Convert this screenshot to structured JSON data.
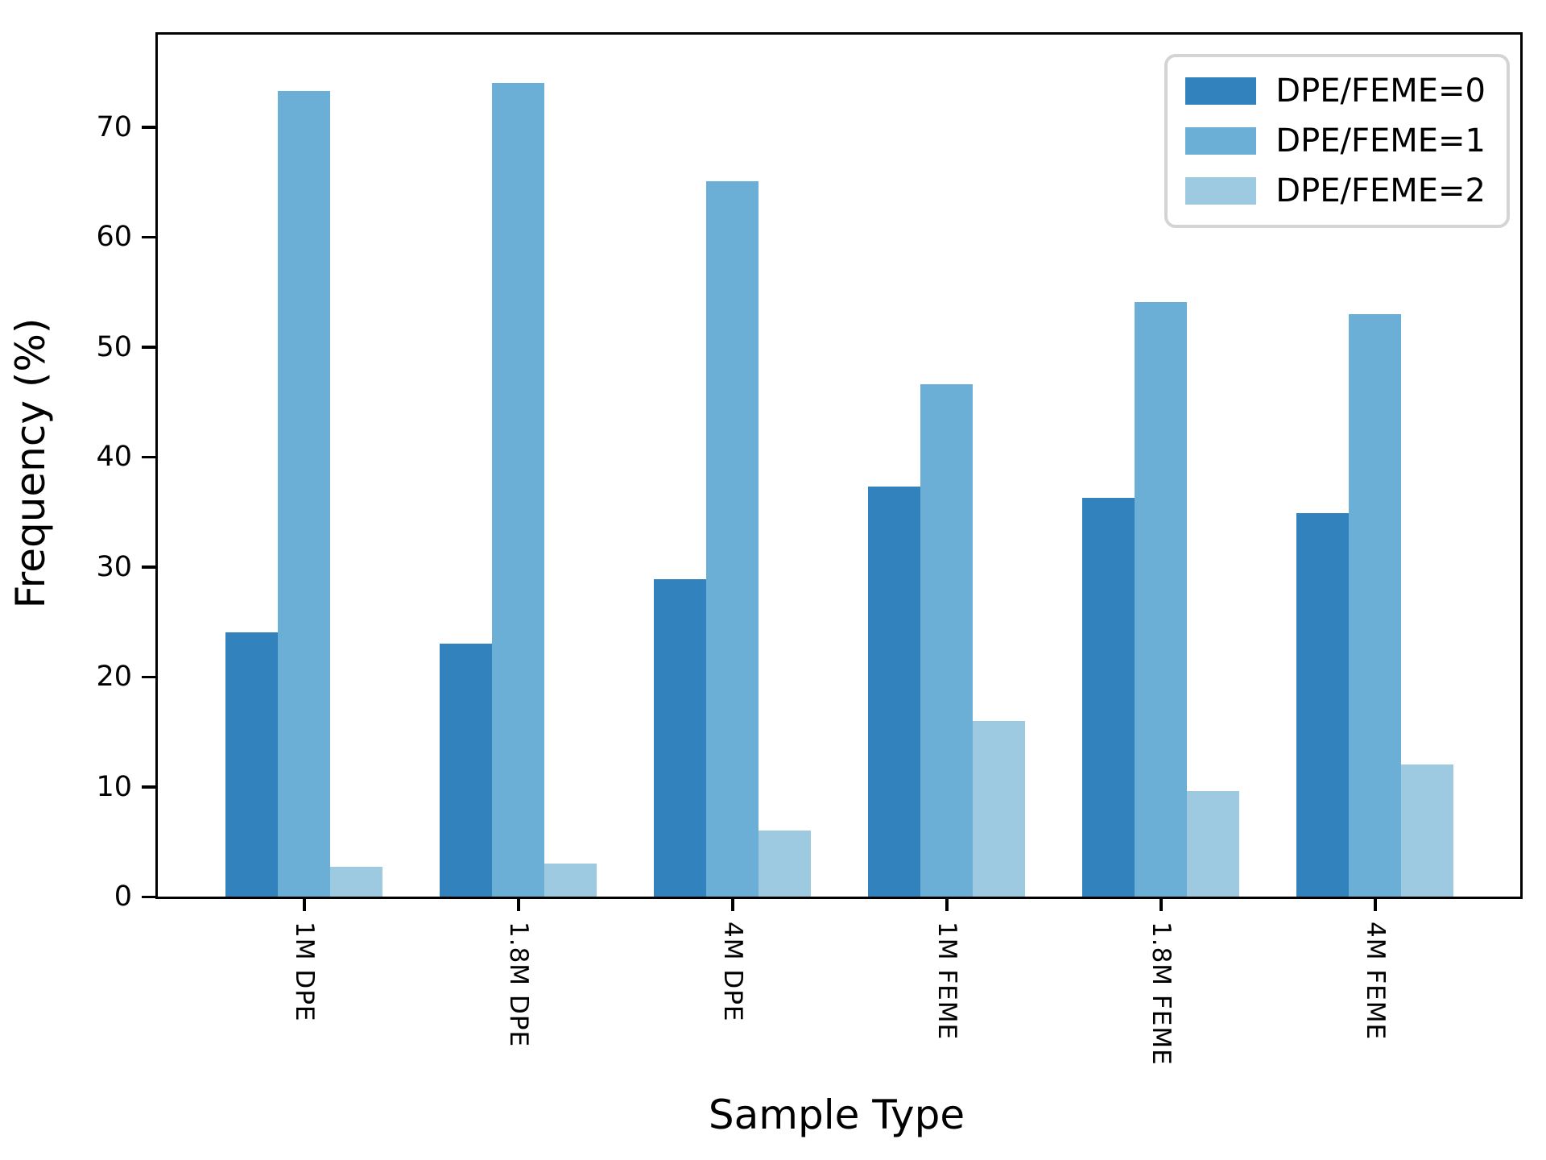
{
  "chart_data": {
    "type": "bar",
    "title": "",
    "xlabel": "Sample Type",
    "ylabel": "Frequency (%)",
    "categories": [
      "1M DPE",
      "1.8M DPE",
      "4M DPE",
      "1M FEME",
      "1.8M FEME",
      "4M FEME"
    ],
    "series": [
      {
        "name": "DPE/FEME=0",
        "color": "#3182bd",
        "values": [
          24.0,
          23.0,
          28.9,
          37.3,
          36.3,
          34.9
        ]
      },
      {
        "name": "DPE/FEME=1",
        "color": "#6baed6",
        "values": [
          73.3,
          74.0,
          65.1,
          46.6,
          54.1,
          53.0
        ]
      },
      {
        "name": "DPE/FEME=2",
        "color": "#9ecae1",
        "values": [
          2.7,
          3.0,
          6.0,
          16.0,
          9.6,
          12.0
        ]
      }
    ],
    "y_ticks": [
      0,
      10,
      20,
      30,
      40,
      50,
      60,
      70
    ],
    "ylim": [
      0,
      78.4
    ],
    "grid": false,
    "legend_position": "upper right",
    "axis_color": "#000000",
    "background_color": "#ffffff"
  }
}
